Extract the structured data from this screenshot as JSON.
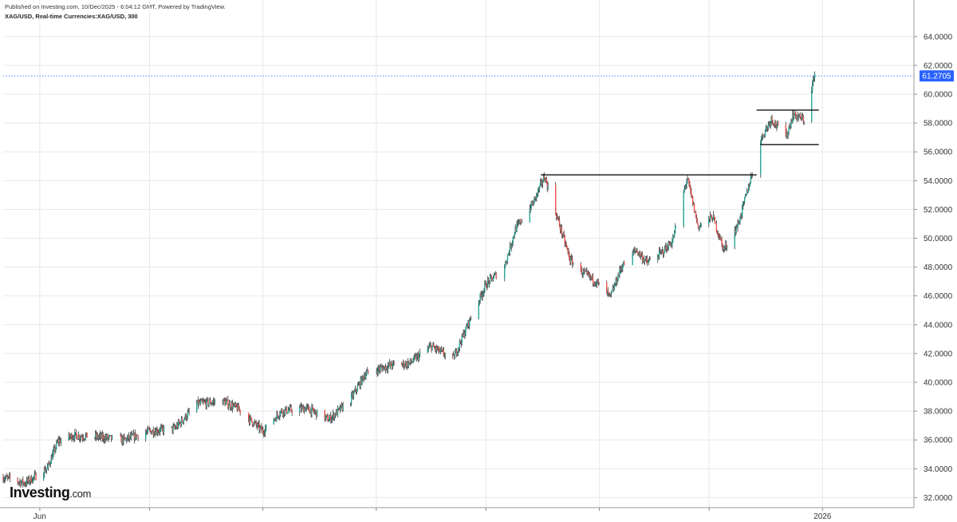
{
  "header": {
    "published": "Published on Investing.com, 10/Dec/2025 - 6:04:12 GMT, Powered by TradingView.",
    "symbol_line": "XAG/USD, Real-time Currencies:XAG/USD, 300"
  },
  "logo": {
    "brand": "Investing",
    "suffix": ".com"
  },
  "colors": {
    "up": "#26a69a",
    "down": "#ef5350",
    "price_tag": "#2962ff",
    "grid": "#e8e8e8"
  },
  "chart_data": {
    "type": "candlestick",
    "ylim": [
      31.3,
      65.1
    ],
    "grid": true,
    "ytick_labels": [
      "64.0000",
      "62.0000",
      "60.0000",
      "58.0000",
      "56.0000",
      "54.0000",
      "52.0000",
      "50.0000",
      "48.0000",
      "46.0000",
      "44.0000",
      "42.0000",
      "40.0000",
      "38.0000",
      "36.0000",
      "34.0000",
      "32.0000"
    ],
    "xtick_labels": [
      "Jun",
      "2026"
    ],
    "last_price": 61.2705,
    "last_price_label": "61.2705",
    "x_domain": [
      "2025-05-22",
      "2026-01-26"
    ],
    "close_path": [
      [
        "2025-05-22",
        33.4
      ],
      [
        "2025-05-28",
        33.0
      ],
      [
        "2025-06-03",
        34.0
      ],
      [
        "2025-06-06",
        35.9
      ],
      [
        "2025-06-10",
        36.3
      ],
      [
        "2025-06-17",
        36.2
      ],
      [
        "2025-06-24",
        36.0
      ],
      [
        "2025-07-01",
        36.6
      ],
      [
        "2025-07-08",
        36.8
      ],
      [
        "2025-07-14",
        38.5
      ],
      [
        "2025-07-21",
        38.7
      ],
      [
        "2025-07-25",
        38.2
      ],
      [
        "2025-08-01",
        36.6
      ],
      [
        "2025-08-06",
        38.0
      ],
      [
        "2025-08-13",
        38.2
      ],
      [
        "2025-08-19",
        37.4
      ],
      [
        "2025-08-25",
        38.8
      ],
      [
        "2025-08-29",
        40.6
      ],
      [
        "2025-09-05",
        41.2
      ],
      [
        "2025-09-10",
        41.3
      ],
      [
        "2025-09-16",
        42.5
      ],
      [
        "2025-09-22",
        41.6
      ],
      [
        "2025-09-26",
        44.0
      ],
      [
        "2025-10-01",
        46.8
      ],
      [
        "2025-10-06",
        48.0
      ],
      [
        "2025-10-09",
        50.6
      ],
      [
        "2025-10-14",
        52.5
      ],
      [
        "2025-10-17",
        54.3
      ],
      [
        "2025-10-21",
        51.0
      ],
      [
        "2025-10-24",
        48.5
      ],
      [
        "2025-10-27",
        47.7
      ],
      [
        "2025-10-31",
        47.0
      ],
      [
        "2025-11-04",
        45.9
      ],
      [
        "2025-11-07",
        48.0
      ],
      [
        "2025-11-11",
        49.2
      ],
      [
        "2025-11-14",
        48.3
      ],
      [
        "2025-11-18",
        49.0
      ],
      [
        "2025-11-21",
        49.8
      ],
      [
        "2025-11-25",
        54.2
      ],
      [
        "2025-11-28",
        50.8
      ],
      [
        "2025-12-02",
        51.5
      ],
      [
        "2025-12-05",
        49.2
      ],
      [
        "2025-12-09",
        51.0
      ],
      [
        "2025-12-12",
        53.8
      ],
      [
        "2025-12-15",
        56.8
      ],
      [
        "2025-12-18",
        58.3
      ],
      [
        "2025-12-22",
        57.0
      ],
      [
        "2025-12-24",
        58.6
      ],
      [
        "2025-12-27",
        58.2
      ],
      [
        "2025-12-30",
        61.5
      ]
    ],
    "annotations": [
      {
        "type": "horizontal-segment",
        "from": "2025-10-16",
        "to": "2025-12-14",
        "value": 54.4
      },
      {
        "type": "horizontal-segment",
        "from": "2025-12-14",
        "to": "2025-12-31",
        "value": 58.9
      },
      {
        "type": "horizontal-segment",
        "from": "2025-12-15",
        "to": "2025-12-31",
        "value": 56.5
      }
    ]
  }
}
